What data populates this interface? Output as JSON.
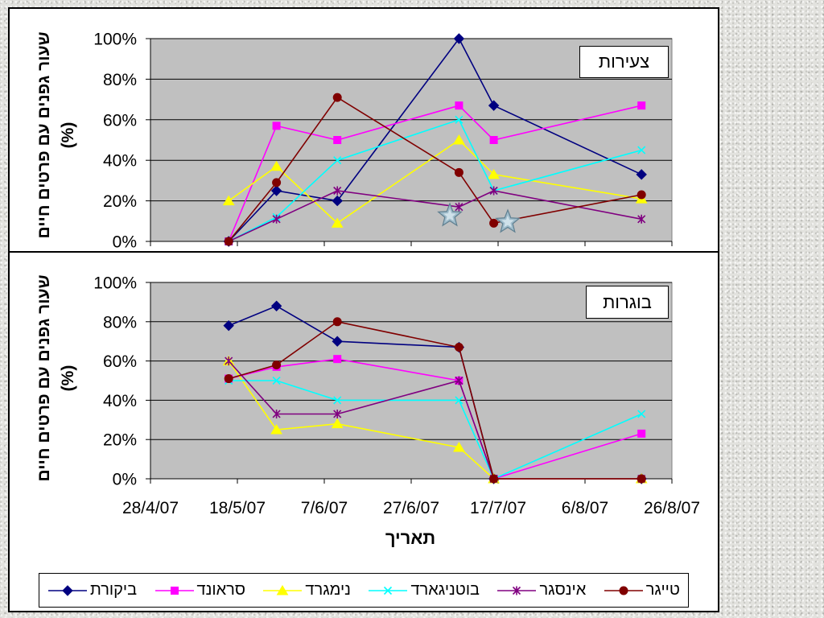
{
  "chart_data": [
    {
      "type": "line",
      "title": "צעירות",
      "ylabel": "שעור גפנים עם פרטים חיים",
      "yunit": "(%)",
      "ylim": [
        0,
        100
      ],
      "yticks": [
        "0%",
        "20%",
        "40%",
        "60%",
        "80%",
        "100%"
      ],
      "xlim": [
        "28/4/07",
        "26/8/07"
      ],
      "grid": true,
      "plot_bg": "#C0C0C0",
      "x": [
        "16/5/07",
        "27/5/07",
        "10/6/07",
        "8/7/07",
        "16/7/07",
        "19/8/07"
      ],
      "series": [
        {
          "name": "ביקורת",
          "color": "#000080",
          "marker": "diamond",
          "values": [
            0,
            25,
            20,
            100,
            67,
            33
          ]
        },
        {
          "name": "סראונד",
          "color": "#FF00FF",
          "marker": "square",
          "values": [
            0,
            57,
            50,
            67,
            50,
            67
          ]
        },
        {
          "name": "נימגרד",
          "color": "#FFFF00",
          "marker": "triangle",
          "values": [
            20,
            37,
            9,
            50,
            33,
            21
          ]
        },
        {
          "name": "בוטניגארד",
          "color": "#00FFFF",
          "marker": "x",
          "values": [
            0,
            12,
            40,
            60,
            25,
            45
          ]
        },
        {
          "name": "אינסגר",
          "color": "#800080",
          "marker": "asterisk",
          "values": [
            0,
            11,
            25,
            17,
            25,
            11
          ]
        },
        {
          "name": "טייגר",
          "color": "#800000",
          "marker": "circle",
          "values": [
            0,
            29,
            71,
            34,
            9,
            23
          ]
        }
      ]
    },
    {
      "type": "line",
      "title": "בוגרות",
      "ylabel": "שעור גפנים עם פרטים חיים",
      "yunit": "(%)",
      "xlabel": "תאריך",
      "ylim": [
        0,
        100
      ],
      "yticks": [
        "0%",
        "20%",
        "40%",
        "60%",
        "80%",
        "100%"
      ],
      "xlim": [
        "28/4/07",
        "26/8/07"
      ],
      "xticks": [
        "28/4/07",
        "18/5/07",
        "7/6/07",
        "27/6/07",
        "17/7/07",
        "6/8/07",
        "26/8/07"
      ],
      "grid": true,
      "plot_bg": "#C0C0C0",
      "x": [
        "16/5/07",
        "27/5/07",
        "10/6/07",
        "8/7/07",
        "16/7/07",
        "19/8/07"
      ],
      "series": [
        {
          "name": "ביקורת",
          "color": "#000080",
          "marker": "diamond",
          "values": [
            78,
            88,
            70,
            67,
            0,
            0
          ]
        },
        {
          "name": "סראונד",
          "color": "#FF00FF",
          "marker": "square",
          "values": [
            51,
            57,
            61,
            50,
            0,
            23
          ]
        },
        {
          "name": "נימגרד",
          "color": "#FFFF00",
          "marker": "triangle",
          "values": [
            60,
            25,
            28,
            16,
            0,
            0
          ]
        },
        {
          "name": "בוטניגארד",
          "color": "#00FFFF",
          "marker": "x",
          "values": [
            50,
            50,
            40,
            40,
            0,
            33
          ]
        },
        {
          "name": "אינסגר",
          "color": "#800080",
          "marker": "asterisk",
          "values": [
            60,
            33,
            33,
            50,
            0,
            0
          ]
        },
        {
          "name": "טייגר",
          "color": "#800000",
          "marker": "circle",
          "values": [
            51,
            58,
            80,
            67,
            0,
            0
          ]
        }
      ]
    }
  ]
}
